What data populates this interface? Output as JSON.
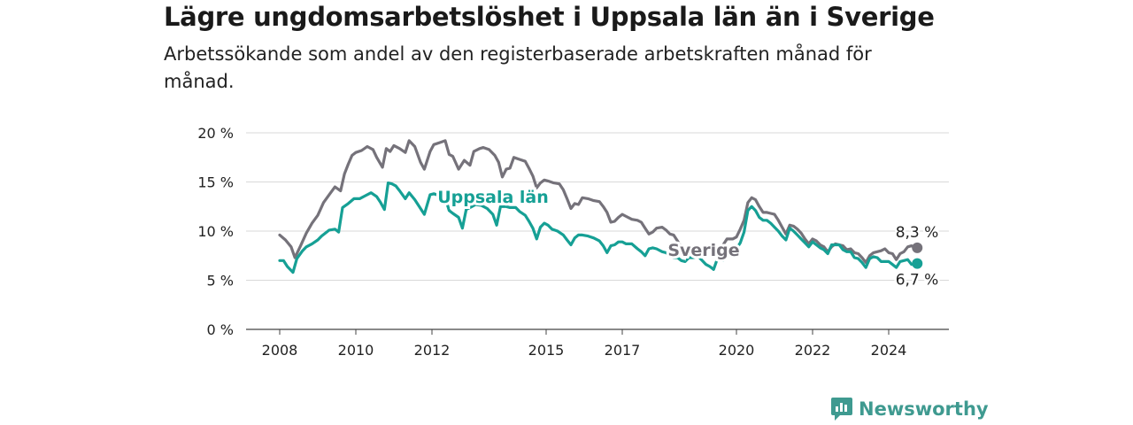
{
  "header": {
    "title": "Lägre ungdomsarbetslöshet i Uppsala län än i Sverige",
    "subtitle": "Arbetssökande som andel av den registerbaserade arbetskraften månad för månad."
  },
  "brand": {
    "name": "Newsworthy",
    "icon": "newsworthy-logo-icon",
    "color": "#3f9a90"
  },
  "chart_data": {
    "type": "line",
    "x_ticks": [
      "2008",
      "2010",
      "2012",
      "2015",
      "2017",
      "2020",
      "2022",
      "2024"
    ],
    "x_tick_values": [
      2008,
      2010,
      2012,
      2015,
      2017,
      2020,
      2022,
      2024
    ],
    "xlim": [
      2008,
      2025
    ],
    "y_ticks": [
      "0 %",
      "5 %",
      "10 %",
      "15 %",
      "20 %"
    ],
    "y_tick_values": [
      0,
      5,
      10,
      15,
      20
    ],
    "ylim": [
      0,
      20
    ],
    "grid": true,
    "series": [
      {
        "name": "Sverige",
        "color": "#75727a",
        "end_label": "8,3 %",
        "points": [
          [
            2008.0,
            9.6
          ],
          [
            2008.15,
            9.1
          ],
          [
            2008.3,
            8.4
          ],
          [
            2008.4,
            7.3
          ],
          [
            2008.55,
            8.5
          ],
          [
            2008.7,
            9.8
          ],
          [
            2008.85,
            10.8
          ],
          [
            2009.0,
            11.6
          ],
          [
            2009.15,
            12.9
          ],
          [
            2009.3,
            13.7
          ],
          [
            2009.45,
            14.5
          ],
          [
            2009.6,
            14.1
          ],
          [
            2009.7,
            15.8
          ],
          [
            2009.8,
            16.8
          ],
          [
            2009.9,
            17.7
          ],
          [
            2010.0,
            18.0
          ],
          [
            2010.15,
            18.2
          ],
          [
            2010.3,
            18.6
          ],
          [
            2010.45,
            18.3
          ],
          [
            2010.55,
            17.5
          ],
          [
            2010.7,
            16.5
          ],
          [
            2010.8,
            18.4
          ],
          [
            2010.9,
            18.1
          ],
          [
            2011.0,
            18.7
          ],
          [
            2011.15,
            18.4
          ],
          [
            2011.3,
            18.0
          ],
          [
            2011.4,
            19.2
          ],
          [
            2011.55,
            18.6
          ],
          [
            2011.7,
            17.0
          ],
          [
            2011.8,
            16.3
          ],
          [
            2011.95,
            18.1
          ],
          [
            2012.05,
            18.8
          ],
          [
            2012.2,
            19.0
          ],
          [
            2012.35,
            19.2
          ],
          [
            2012.45,
            17.8
          ],
          [
            2012.55,
            17.6
          ],
          [
            2012.7,
            16.3
          ],
          [
            2012.85,
            17.2
          ],
          [
            2013.0,
            16.7
          ],
          [
            2013.1,
            18.1
          ],
          [
            2013.25,
            18.4
          ],
          [
            2013.35,
            18.5
          ],
          [
            2013.5,
            18.3
          ],
          [
            2013.65,
            17.7
          ],
          [
            2013.75,
            17.0
          ],
          [
            2013.85,
            15.5
          ],
          [
            2013.95,
            16.3
          ],
          [
            2014.05,
            16.4
          ],
          [
            2014.15,
            17.5
          ],
          [
            2014.3,
            17.3
          ],
          [
            2014.45,
            17.1
          ],
          [
            2014.55,
            16.4
          ],
          [
            2014.65,
            15.6
          ],
          [
            2014.75,
            14.4
          ],
          [
            2014.85,
            14.9
          ],
          [
            2014.95,
            15.2
          ],
          [
            2015.05,
            15.1
          ],
          [
            2015.2,
            14.9
          ],
          [
            2015.35,
            14.8
          ],
          [
            2015.45,
            14.2
          ],
          [
            2015.55,
            13.3
          ],
          [
            2015.65,
            12.3
          ],
          [
            2015.75,
            12.8
          ],
          [
            2015.85,
            12.7
          ],
          [
            2015.95,
            13.4
          ],
          [
            2016.1,
            13.3
          ],
          [
            2016.25,
            13.1
          ],
          [
            2016.4,
            13.0
          ],
          [
            2016.5,
            12.5
          ],
          [
            2016.6,
            11.9
          ],
          [
            2016.7,
            10.9
          ],
          [
            2016.8,
            11.0
          ],
          [
            2016.9,
            11.4
          ],
          [
            2017.0,
            11.7
          ],
          [
            2017.1,
            11.5
          ],
          [
            2017.25,
            11.2
          ],
          [
            2017.4,
            11.1
          ],
          [
            2017.5,
            10.9
          ],
          [
            2017.6,
            10.3
          ],
          [
            2017.7,
            9.7
          ],
          [
            2017.8,
            9.9
          ],
          [
            2017.9,
            10.3
          ],
          [
            2018.05,
            10.4
          ],
          [
            2018.15,
            10.1
          ],
          [
            2018.25,
            9.7
          ],
          [
            2018.35,
            9.6
          ],
          [
            2018.45,
            9.0
          ],
          [
            2018.55,
            8.4
          ],
          [
            2019.6,
            8.3
          ],
          [
            2019.75,
            9.2
          ],
          [
            2019.9,
            9.2
          ],
          [
            2020.0,
            9.4
          ],
          [
            2020.1,
            10.2
          ],
          [
            2020.2,
            11.1
          ],
          [
            2020.3,
            12.9
          ],
          [
            2020.4,
            13.4
          ],
          [
            2020.5,
            13.2
          ],
          [
            2020.6,
            12.5
          ],
          [
            2020.7,
            11.9
          ],
          [
            2020.8,
            11.9
          ],
          [
            2020.9,
            11.8
          ],
          [
            2021.0,
            11.7
          ],
          [
            2021.1,
            11.1
          ],
          [
            2021.2,
            10.4
          ],
          [
            2021.3,
            9.7
          ],
          [
            2021.4,
            10.6
          ],
          [
            2021.5,
            10.5
          ],
          [
            2021.6,
            10.2
          ],
          [
            2021.7,
            9.8
          ],
          [
            2021.8,
            9.2
          ],
          [
            2021.9,
            8.7
          ],
          [
            2022.0,
            9.2
          ],
          [
            2022.1,
            9.0
          ],
          [
            2022.2,
            8.6
          ],
          [
            2022.3,
            8.4
          ],
          [
            2022.4,
            7.9
          ],
          [
            2022.5,
            8.4
          ],
          [
            2022.6,
            8.7
          ],
          [
            2022.7,
            8.6
          ],
          [
            2022.8,
            8.5
          ],
          [
            2022.9,
            8.1
          ],
          [
            2023.0,
            8.2
          ],
          [
            2023.1,
            7.8
          ],
          [
            2023.2,
            7.7
          ],
          [
            2023.3,
            7.3
          ],
          [
            2023.4,
            6.8
          ],
          [
            2023.5,
            7.5
          ],
          [
            2023.6,
            7.8
          ],
          [
            2023.7,
            7.9
          ],
          [
            2023.8,
            8.0
          ],
          [
            2023.9,
            8.2
          ],
          [
            2024.0,
            7.8
          ],
          [
            2024.1,
            7.7
          ],
          [
            2024.2,
            7.1
          ],
          [
            2024.3,
            7.7
          ],
          [
            2024.4,
            7.9
          ],
          [
            2024.5,
            8.4
          ],
          [
            2024.6,
            8.5
          ],
          [
            2024.75,
            8.3
          ]
        ]
      },
      {
        "name": "Uppsala län",
        "color": "#16a095",
        "end_label": "6,7 %",
        "points": [
          [
            2008.0,
            7.0
          ],
          [
            2008.1,
            7.0
          ],
          [
            2008.2,
            6.4
          ],
          [
            2008.35,
            5.8
          ],
          [
            2008.45,
            7.2
          ],
          [
            2008.6,
            8.0
          ],
          [
            2008.7,
            8.4
          ],
          [
            2008.85,
            8.7
          ],
          [
            2009.0,
            9.1
          ],
          [
            2009.1,
            9.5
          ],
          [
            2009.2,
            9.8
          ],
          [
            2009.3,
            10.1
          ],
          [
            2009.45,
            10.2
          ],
          [
            2009.55,
            9.9
          ],
          [
            2009.65,
            12.4
          ],
          [
            2009.8,
            12.8
          ],
          [
            2009.95,
            13.3
          ],
          [
            2010.1,
            13.3
          ],
          [
            2010.25,
            13.6
          ],
          [
            2010.4,
            13.9
          ],
          [
            2010.55,
            13.5
          ],
          [
            2010.65,
            12.9
          ],
          [
            2010.75,
            12.2
          ],
          [
            2010.85,
            14.9
          ],
          [
            2010.95,
            14.8
          ],
          [
            2011.05,
            14.6
          ],
          [
            2011.15,
            14.1
          ],
          [
            2011.3,
            13.3
          ],
          [
            2011.4,
            13.9
          ],
          [
            2011.55,
            13.2
          ],
          [
            2011.7,
            12.3
          ],
          [
            2011.8,
            11.7
          ],
          [
            2011.95,
            13.7
          ],
          [
            2012.05,
            13.8
          ],
          [
            2012.2,
            13.6
          ],
          [
            2012.35,
            13.4
          ],
          [
            2012.45,
            12.1
          ],
          [
            2012.55,
            11.8
          ],
          [
            2012.7,
            11.4
          ],
          [
            2012.8,
            10.3
          ],
          [
            2012.9,
            12.2
          ],
          [
            2013.0,
            12.4
          ],
          [
            2013.15,
            12.7
          ],
          [
            2013.3,
            12.6
          ],
          [
            2013.45,
            12.3
          ],
          [
            2013.6,
            11.7
          ],
          [
            2013.7,
            10.6
          ],
          [
            2013.8,
            12.5
          ],
          [
            2013.95,
            12.5
          ],
          [
            2014.05,
            12.4
          ],
          [
            2014.2,
            12.4
          ],
          [
            2014.3,
            12.0
          ],
          [
            2014.45,
            11.6
          ],
          [
            2014.55,
            11.0
          ],
          [
            2014.65,
            10.3
          ],
          [
            2014.75,
            9.2
          ],
          [
            2014.85,
            10.4
          ],
          [
            2014.95,
            10.8
          ],
          [
            2015.05,
            10.6
          ],
          [
            2015.15,
            10.2
          ],
          [
            2015.3,
            10.0
          ],
          [
            2015.45,
            9.6
          ],
          [
            2015.55,
            9.1
          ],
          [
            2015.65,
            8.6
          ],
          [
            2015.75,
            9.3
          ],
          [
            2015.85,
            9.6
          ],
          [
            2015.95,
            9.6
          ],
          [
            2016.1,
            9.5
          ],
          [
            2016.25,
            9.3
          ],
          [
            2016.4,
            9.0
          ],
          [
            2016.5,
            8.5
          ],
          [
            2016.6,
            7.8
          ],
          [
            2016.7,
            8.5
          ],
          [
            2016.8,
            8.6
          ],
          [
            2016.9,
            8.9
          ],
          [
            2017.0,
            8.9
          ],
          [
            2017.1,
            8.7
          ],
          [
            2017.25,
            8.7
          ],
          [
            2017.4,
            8.2
          ],
          [
            2017.5,
            7.9
          ],
          [
            2017.6,
            7.5
          ],
          [
            2017.7,
            8.2
          ],
          [
            2017.8,
            8.3
          ],
          [
            2017.9,
            8.2
          ],
          [
            2018.05,
            7.9
          ],
          [
            2018.15,
            7.8
          ],
          [
            2018.25,
            7.5
          ],
          [
            2018.35,
            7.3
          ],
          [
            2018.45,
            7.3
          ],
          [
            2018.55,
            7.0
          ],
          [
            2018.65,
            6.9
          ],
          [
            2018.75,
            7.3
          ],
          [
            2018.85,
            7.3
          ],
          [
            2019.0,
            7.4
          ],
          [
            2019.1,
            7.0
          ],
          [
            2019.2,
            6.6
          ],
          [
            2019.3,
            6.4
          ],
          [
            2019.4,
            6.1
          ],
          [
            2019.5,
            7.2
          ],
          [
            2019.55,
            7.3
          ],
          [
            2019.65,
            7.0
          ],
          [
            2019.75,
            7.5
          ],
          [
            2019.85,
            7.7
          ],
          [
            2019.95,
            8.1
          ],
          [
            2020.0,
            8.2
          ],
          [
            2020.1,
            8.8
          ],
          [
            2020.2,
            9.9
          ],
          [
            2020.3,
            12.1
          ],
          [
            2020.4,
            12.5
          ],
          [
            2020.5,
            12.1
          ],
          [
            2020.6,
            11.4
          ],
          [
            2020.7,
            11.1
          ],
          [
            2020.8,
            11.1
          ],
          [
            2020.9,
            10.8
          ],
          [
            2021.0,
            10.4
          ],
          [
            2021.1,
            10.0
          ],
          [
            2021.2,
            9.5
          ],
          [
            2021.3,
            9.1
          ],
          [
            2021.4,
            10.3
          ],
          [
            2021.5,
            10.0
          ],
          [
            2021.6,
            9.6
          ],
          [
            2021.7,
            9.2
          ],
          [
            2021.8,
            8.8
          ],
          [
            2021.9,
            8.4
          ],
          [
            2022.0,
            8.9
          ],
          [
            2022.1,
            8.6
          ],
          [
            2022.2,
            8.3
          ],
          [
            2022.3,
            8.1
          ],
          [
            2022.4,
            7.7
          ],
          [
            2022.5,
            8.6
          ],
          [
            2022.6,
            8.6
          ],
          [
            2022.7,
            8.6
          ],
          [
            2022.8,
            8.1
          ],
          [
            2022.9,
            7.9
          ],
          [
            2023.0,
            7.9
          ],
          [
            2023.1,
            7.3
          ],
          [
            2023.2,
            7.2
          ],
          [
            2023.3,
            6.8
          ],
          [
            2023.4,
            6.3
          ],
          [
            2023.5,
            7.2
          ],
          [
            2023.6,
            7.4
          ],
          [
            2023.7,
            7.3
          ],
          [
            2023.8,
            6.9
          ],
          [
            2023.9,
            6.9
          ],
          [
            2024.0,
            6.9
          ],
          [
            2024.1,
            6.6
          ],
          [
            2024.2,
            6.3
          ],
          [
            2024.3,
            6.9
          ],
          [
            2024.4,
            7.0
          ],
          [
            2024.5,
            7.1
          ],
          [
            2024.6,
            6.6
          ],
          [
            2024.75,
            6.7
          ]
        ]
      }
    ]
  }
}
